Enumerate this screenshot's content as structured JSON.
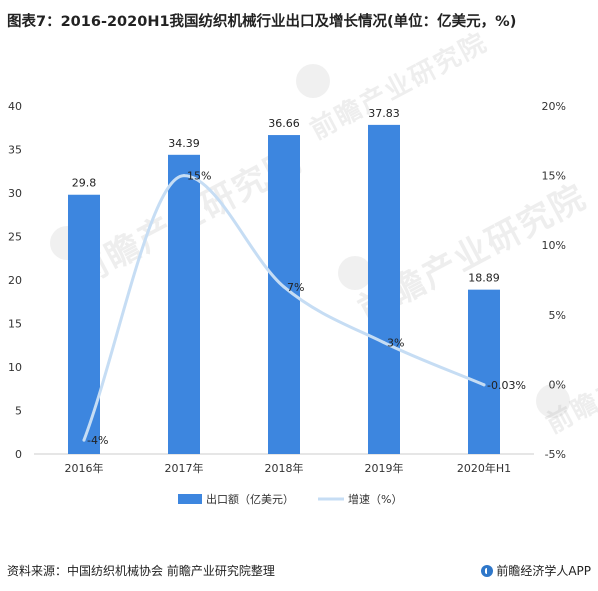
{
  "title": "图表7：2016-2020H1我国纺织机械行业出口及增长情况(单位：亿美元，%)",
  "watermark_text": "前瞻产业研究院",
  "footer": {
    "source": "资料来源：中国纺织机械协会 前瞻产业研究院整理",
    "brand": "前瞻经济学人APP"
  },
  "colors": {
    "bar": "#3d86df",
    "line": "#c6ddf4",
    "axis": "#cccccc"
  },
  "chart_data": {
    "type": "bar",
    "categories": [
      "2016年",
      "2017年",
      "2018年",
      "2019年",
      "2020年H1"
    ],
    "series": [
      {
        "name": "出口额（亿美元）",
        "type": "bar",
        "axis": "left",
        "values": [
          29.8,
          34.39,
          36.66,
          37.83,
          18.89
        ],
        "labels": [
          "29.8",
          "34.39",
          "36.66",
          "37.83",
          "18.89"
        ]
      },
      {
        "name": "增速（%）",
        "type": "line",
        "smooth": true,
        "axis": "right",
        "values": [
          -4,
          15,
          7,
          3,
          -0.03
        ],
        "labels": [
          "-4%",
          "15%",
          "7%",
          "3%",
          "-0.03%"
        ]
      }
    ],
    "y_left": {
      "min": 0,
      "max": 40,
      "ticks": [
        "0",
        "5",
        "10",
        "15",
        "20",
        "25",
        "30",
        "35",
        "40"
      ]
    },
    "y_right": {
      "min": -5,
      "max": 20,
      "ticks": [
        "-5%",
        "0%",
        "5%",
        "10%",
        "15%",
        "20%"
      ]
    },
    "legend_position": "bottom",
    "grid": false
  }
}
